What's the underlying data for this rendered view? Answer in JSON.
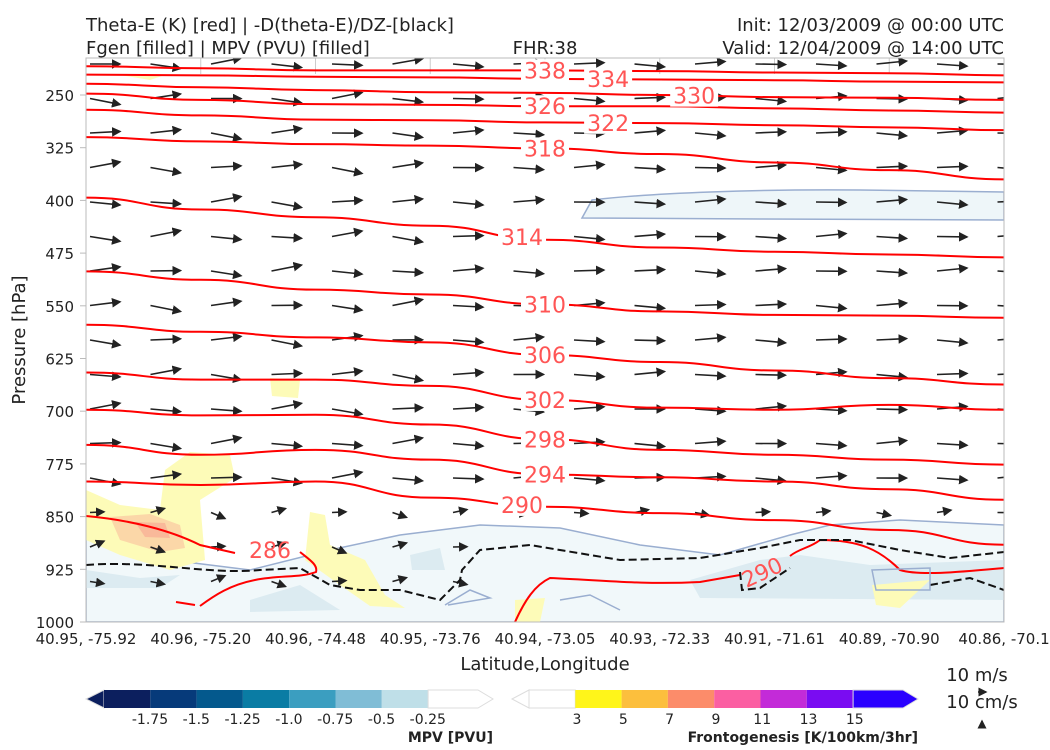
{
  "chart_data": {
    "type": "line",
    "title_left": [
      "Theta-E (K) [red] | -D(theta-E)/DZ-[black]",
      "Fgen [filled] | MPV (PVU) [filled]"
    ],
    "title_center": "FHR:38",
    "title_right": [
      "Init: 12/03/2009 @ 00:00 UTC",
      "Valid: 12/04/2009 @ 14:00 UTC"
    ],
    "xlabel": "Latitude,Longitude",
    "ylabel": "Pressure [hPa]",
    "ylim": [
      1000,
      197
    ],
    "y_ticks": [
      250,
      325,
      400,
      475,
      550,
      625,
      700,
      775,
      850,
      925,
      1000
    ],
    "x_ticks": [
      "40.95, -75.92",
      "40.96, -75.20",
      "40.96, -74.48",
      "40.95, -73.76",
      "40.94, -73.05",
      "40.93, -72.33",
      "40.91, -71.61",
      "40.89, -70.90",
      "40.86, -70.1"
    ],
    "theta_e_color": "#ff0000",
    "theta_e_label_color": "#ff5555",
    "theta_e_series": [
      {
        "name": "338",
        "p": [
          209,
          212,
          215,
          215,
          215,
          216,
          218,
          219,
          222
        ],
        "label_at": 4
      },
      {
        "name": "334",
        "p": [
          221,
          222,
          224,
          225,
          227,
          228,
          229,
          231,
          232
        ],
        "label_at": 4
      },
      {
        "name": "330",
        "p": [
          234,
          239,
          243,
          246,
          247,
          250,
          253,
          254,
          257
        ],
        "label_at": 4.2
      },
      {
        "name": "326",
        "p": [
          248,
          257,
          263,
          264,
          266,
          266,
          269,
          272,
          275
        ],
        "label_at": 4
      },
      {
        "name": "322",
        "p": [
          271,
          279,
          285,
          286,
          289,
          290,
          293,
          296,
          300
        ],
        "label_at": 4
      },
      {
        "name": "318",
        "p": [
          310,
          316,
          320,
          322,
          326,
          334,
          346,
          357,
          370
        ],
        "label_at": 4
      },
      {
        "name": "314",
        "p": [
          396,
          413,
          424,
          436,
          456,
          467,
          473,
          477,
          481
        ],
        "label_at": 3.8
      },
      {
        "name": "310",
        "p": [
          501,
          513,
          527,
          534,
          548,
          558,
          563,
          564,
          567
        ],
        "label_at": 4
      },
      {
        "name": "306",
        "p": [
          577,
          587,
          595,
          602,
          620,
          630,
          642,
          653,
          662
        ],
        "label_at": 4
      },
      {
        "name": "302",
        "p": [
          645,
          655,
          655,
          664,
          684,
          695,
          698,
          691,
          698
        ],
        "label_at": 4
      },
      {
        "name": "298",
        "p": [
          698,
          706,
          705,
          719,
          740,
          755,
          762,
          769,
          776
        ],
        "label_at": 4
      },
      {
        "name": "294",
        "p": [
          748,
          762,
          755,
          769,
          790,
          794,
          800,
          811,
          826
        ],
        "label_at": 4
      },
      {
        "name": "290",
        "p": [
          800,
          805,
          800,
          823,
          836,
          845,
          855,
          869,
          890
        ],
        "label_at": 3.8
      }
    ],
    "isolated_labels": [
      "286",
      "290"
    ],
    "mpv_colorbar": {
      "label": "MPV [PVU]",
      "ticks": [
        "-1.75",
        "-1.5",
        "-1.25",
        "-1.0",
        "-0.75",
        "-0.5",
        "-0.25"
      ],
      "colors": [
        "#0c1f5e",
        "#063a7a",
        "#04598d",
        "#0a7ca4",
        "#3b9ec0",
        "#80bdd6",
        "#bfdfe8",
        "#ffffff"
      ]
    },
    "fgen_colorbar": {
      "label": "Frontogenesis [K/100km/3hr]",
      "ticks": [
        "3",
        "5",
        "7",
        "9",
        "11",
        "13",
        "15"
      ],
      "colors": [
        "#ffffff",
        "#fff51a",
        "#fcbf3d",
        "#fc8c6a",
        "#fb5fa2",
        "#c32bd8",
        "#7a0cf2",
        "#2a00ff"
      ]
    },
    "reference_vectors": {
      "horizontal": "10 m/s",
      "vertical": "10 cm/s"
    }
  }
}
